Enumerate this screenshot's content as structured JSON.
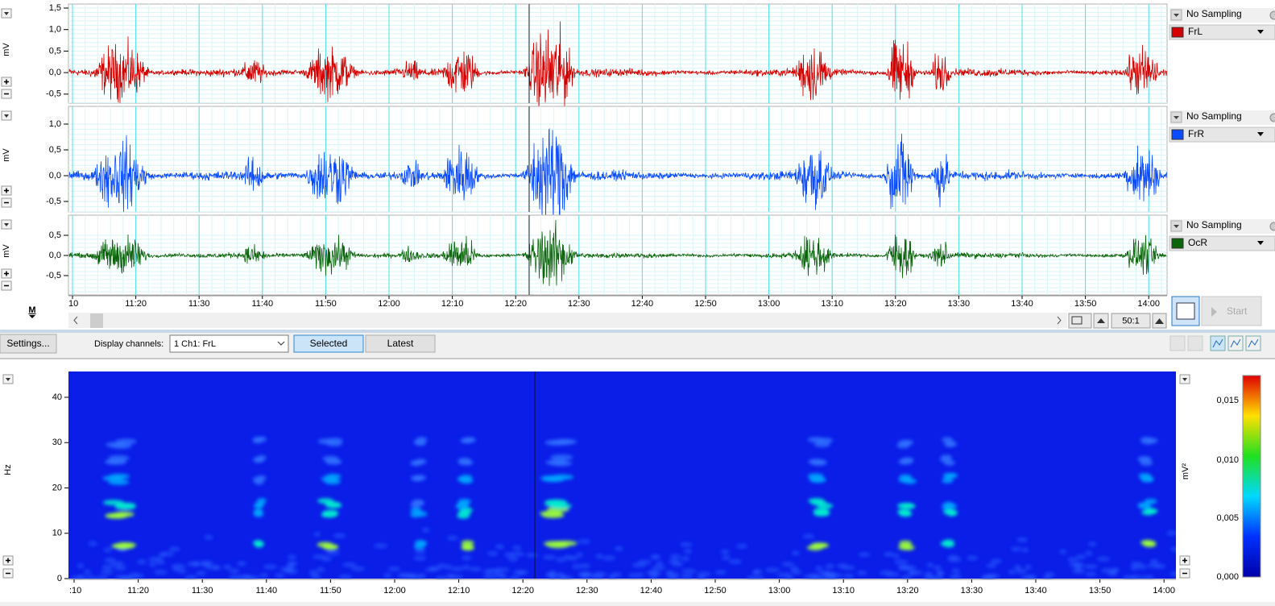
{
  "eeg_panel": {
    "channels": [
      {
        "unit": "mV",
        "yticks": [
          "1,5",
          "1,0",
          "0,5",
          "0,0",
          "-0,5"
        ],
        "sampling": "No Sampling",
        "label": "FrL",
        "color": "#d40000"
      },
      {
        "unit": "mV",
        "yticks": [
          "1,0",
          "0,5",
          "0,0",
          "-0,5"
        ],
        "sampling": "No Sampling",
        "label": "FrR",
        "color": "#0a4bff"
      },
      {
        "unit": "mV",
        "yticks": [
          "0,5",
          "0,0",
          "-0,5"
        ],
        "sampling": "No Sampling",
        "label": "OcR",
        "color": "#0a640a"
      }
    ],
    "time_ticks": [
      "10",
      "11:20",
      "11:30",
      "11:40",
      "11:50",
      "12:00",
      "12:10",
      "12:20",
      "12:30",
      "12:40",
      "12:50",
      "13:00",
      "13:10",
      "13:20",
      "13:30",
      "13:40",
      "13:50",
      "14:00"
    ],
    "marker_button": "M",
    "zoom": "50:1",
    "start_button": "Start"
  },
  "toolbar": {
    "settings": "Settings...",
    "display_channels_label": "Display channels:",
    "display_channels_value": "1 Ch1: FrL",
    "selected": "Selected",
    "latest": "Latest"
  },
  "spectrogram": {
    "y_unit": "Hz",
    "yticks": [
      "40",
      "30",
      "20",
      "10",
      "0"
    ],
    "time_ticks": [
      ":10",
      "11:20",
      "11:30",
      "11:40",
      "11:50",
      "12:00",
      "12:10",
      "12:20",
      "12:30",
      "12:40",
      "12:50",
      "13:00",
      "13:10",
      "13:20",
      "13:30",
      "13:40",
      "13:50",
      "14:00"
    ],
    "colorbar_unit": "mV²",
    "colorbar_ticks": [
      "0,015",
      "0,010",
      "0,005",
      "0,000"
    ]
  }
}
